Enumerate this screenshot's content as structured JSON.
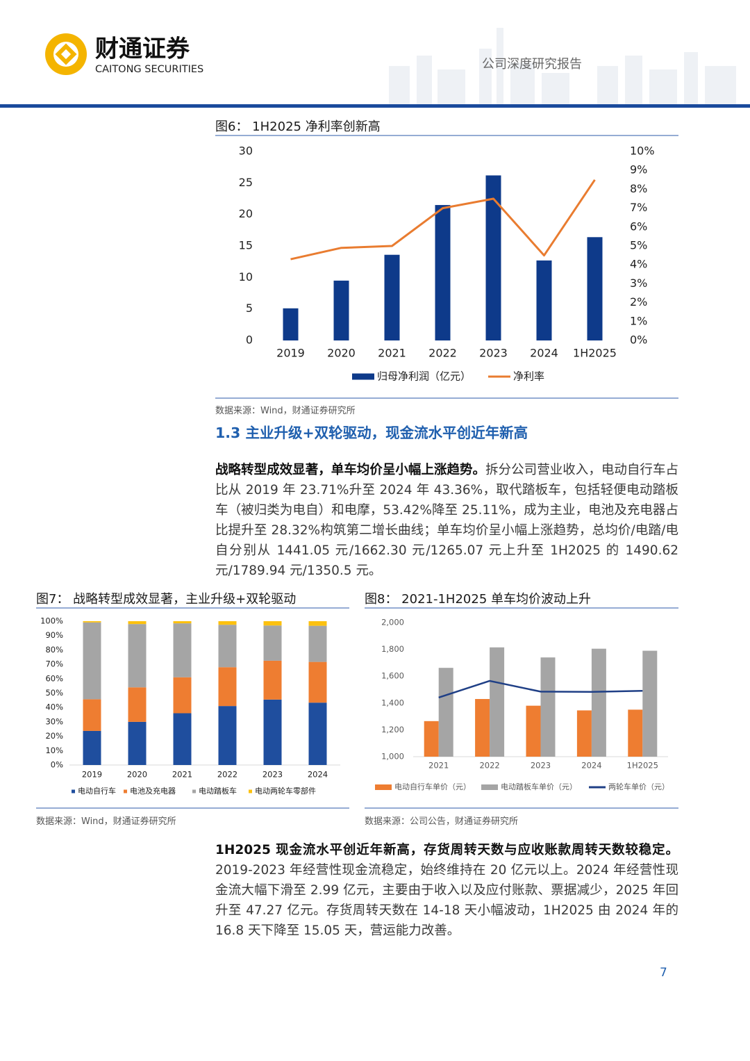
{
  "header": {
    "logo_cn": "财通证券",
    "logo_en": "CAITONG SECURITIES",
    "report_type": "公司深度研究报告"
  },
  "section_heading": "1.3 主业升级+双轮驱动，现金流水平创近年新高",
  "paragraphs": [
    {
      "lead": "战略转型成效显著，单车均价呈小幅上涨趋势。",
      "text": "拆分公司营业收入，电动自行车占比从 2019 年 23.71%升至 2024 年 43.36%，取代踏板车，包括轻便电动踏板车（被归类为电自）和电摩，53.42%降至 25.11%，成为主业，电池及充电器占比提升至 28.32%构筑第二增长曲线；单车均价呈小幅上涨趋势，总均价/电踏/电自分别从 1441.05 元/1662.30 元/1265.07 元上升至 1H2025 的 1490.62 元/1789.94 元/1350.5 元。"
    },
    {
      "lead": "1H2025 现金流水平创近年新高，存货周转天数与应收账款周转天数较稳定。",
      "text": "2019-2023 年经营性现金流稳定，始终维持在 20 亿元以上。2024 年经营性现金流大幅下滑至 2.99 亿元，主要由于收入以及应付账款、票据减少，2025 年回升至 47.27 亿元。存货周转天数在 14-18 天小幅波动，1H2025 由 2024 年的 16.8 天下降至 15.05 天，营运能力改善。"
    }
  ],
  "page_number": "7",
  "chart_data": [
    {
      "type": "bar",
      "title": "图6： 1H2025 净利率创新高",
      "source": "数据来源：Wind，财通证券研究所",
      "categories": [
        "2019",
        "2020",
        "2021",
        "2022",
        "2023",
        "2024",
        "1H2025"
      ],
      "series": [
        {
          "name": "归母净利润（亿元）",
          "color": "#0e3a8a",
          "values": [
            5.1,
            9.5,
            13.6,
            21.5,
            26.2,
            12.7,
            16.4
          ]
        },
        {
          "name": "净利率",
          "color": "#e97c30",
          "type": "line",
          "axis": "y2",
          "values": [
            4.3,
            4.9,
            5.0,
            7.0,
            7.5,
            4.5,
            8.5
          ]
        }
      ],
      "ylim": [
        0,
        30
      ],
      "yticks": [
        0,
        5,
        10,
        15,
        20,
        25,
        30
      ],
      "y2lim": [
        0,
        10
      ],
      "y2ticks": [
        {
          "value": 0,
          "label": "0%"
        },
        {
          "value": 1,
          "label": "1%"
        },
        {
          "value": 2,
          "label": "2%"
        },
        {
          "value": 3,
          "label": "3%"
        },
        {
          "value": 4,
          "label": "4%"
        },
        {
          "value": 5,
          "label": "5%"
        },
        {
          "value": 6,
          "label": "6%"
        },
        {
          "value": 7,
          "label": "7%"
        },
        {
          "value": 8,
          "label": "8%"
        },
        {
          "value": 9,
          "label": "9%"
        },
        {
          "value": 10,
          "label": "10%"
        }
      ],
      "grid": false,
      "legend": "bottom"
    },
    {
      "type": "stacked_bar",
      "title": "图7： 战略转型成效显著，主业升级+双轮驱动",
      "source": "数据来源：Wind，财通证券研究所",
      "categories": [
        "2019",
        "2020",
        "2021",
        "2022",
        "2023",
        "2024"
      ],
      "series": [
        {
          "name": "电动自行车",
          "color": "#1f4e9e",
          "values": [
            23.71,
            30,
            36,
            41,
            45.5,
            43.36
          ]
        },
        {
          "name": "电池及充电器",
          "color": "#ee7d31",
          "values": [
            22,
            24,
            25,
            27,
            27,
            28.32
          ]
        },
        {
          "name": "电动踏板车",
          "color": "#a5a5a5",
          "values": [
            53.42,
            44,
            37.5,
            29.5,
            24.5,
            25.11
          ]
        },
        {
          "name": "电动两轮车零部件",
          "color": "#fcc10f",
          "values": [
            0.87,
            2,
            1.5,
            2.5,
            3,
            3.21
          ]
        }
      ],
      "ylim": [
        0,
        100
      ],
      "yticks": [
        {
          "value": 0,
          "label": "0%"
        },
        {
          "value": 10,
          "label": "10%"
        },
        {
          "value": 20,
          "label": "20%"
        },
        {
          "value": 30,
          "label": "30%"
        },
        {
          "value": 40,
          "label": "40%"
        },
        {
          "value": 50,
          "label": "50%"
        },
        {
          "value": 60,
          "label": "60%"
        },
        {
          "value": 70,
          "label": "70%"
        },
        {
          "value": 80,
          "label": "80%"
        },
        {
          "value": 90,
          "label": "90%"
        },
        {
          "value": 100,
          "label": "100%"
        }
      ],
      "grid": false,
      "legend": "bottom"
    },
    {
      "type": "bar",
      "title": "图8： 2021-1H2025 单车均价波动上升",
      "source": "数据来源：公司公告，财通证券研究所",
      "categories": [
        "2021",
        "2022",
        "2023",
        "2024",
        "1H2025"
      ],
      "series": [
        {
          "name": "电动自行车单价（元）",
          "color": "#ee7d31",
          "values": [
            1265.07,
            1430,
            1380,
            1345,
            1350.5
          ]
        },
        {
          "name": "电动踏板车单价（元）",
          "color": "#a5a5a5",
          "values": [
            1662.3,
            1815,
            1740,
            1805,
            1789.94
          ]
        },
        {
          "name": "两轮车单价（元）",
          "color": "#1f3f86",
          "type": "line",
          "values": [
            1441.05,
            1565,
            1485,
            1483,
            1490.62
          ]
        }
      ],
      "ylim": [
        1000,
        2000
      ],
      "yticks": [
        {
          "value": 1000,
          "label": "1,000"
        },
        {
          "value": 1200,
          "label": "1,200"
        },
        {
          "value": 1400,
          "label": "1,400"
        },
        {
          "value": 1600,
          "label": "1,600"
        },
        {
          "value": 1800,
          "label": "1,800"
        },
        {
          "value": 2000,
          "label": "2,000"
        }
      ],
      "grid": false,
      "legend": "bottom"
    }
  ]
}
